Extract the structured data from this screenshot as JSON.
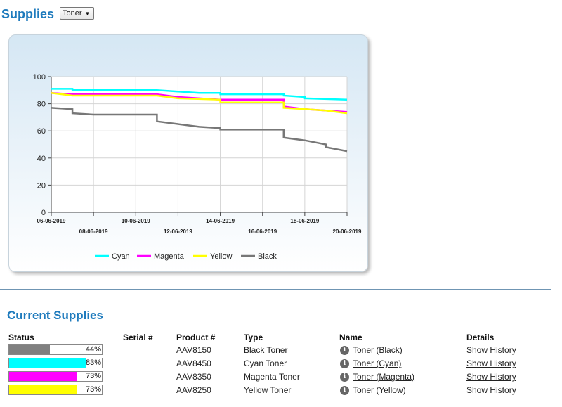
{
  "header": {
    "title": "Supplies",
    "select_value": "Toner"
  },
  "current": {
    "title": "Current Supplies",
    "columns": [
      "Status",
      "Serial #",
      "Product #",
      "Type",
      "Name",
      "Details"
    ],
    "rows": [
      {
        "pct": 44,
        "pct_label": "44%",
        "color": "#808080",
        "serial": "",
        "product": "AAV8150",
        "type": "Black Toner",
        "name": "Toner (Black)",
        "details": "Show History"
      },
      {
        "pct": 83,
        "pct_label": "83%",
        "color": "#00ffff",
        "serial": "",
        "product": "AAV8450",
        "type": "Cyan Toner",
        "name": "Toner (Cyan)",
        "details": "Show History"
      },
      {
        "pct": 73,
        "pct_label": "73%",
        "color": "#ff00ff",
        "serial": "",
        "product": "AAV8350",
        "type": "Magenta Toner",
        "name": "Toner (Magenta)",
        "details": "Show History"
      },
      {
        "pct": 73,
        "pct_label": "73%",
        "color": "#ffff00",
        "serial": "",
        "product": "AAV8250",
        "type": "Yellow Toner",
        "name": "Toner (Yellow)",
        "details": "Show History"
      }
    ]
  },
  "chart_data": {
    "type": "line",
    "x_type": "date",
    "x_range": [
      "06-06-2019",
      "20-06-2019"
    ],
    "x_ticks_top": [
      "06-06-2019",
      "10-06-2019",
      "14-06-2019",
      "18-06-2019"
    ],
    "x_ticks_bottom": [
      "08-06-2019",
      "12-06-2019",
      "16-06-2019",
      "20-06-2019"
    ],
    "ylim": [
      0,
      100
    ],
    "y_ticks": [
      0,
      20,
      40,
      60,
      80,
      100
    ],
    "grid": true,
    "legend_position": "bottom",
    "series": [
      {
        "name": "Cyan",
        "color": "#00ffff",
        "points": [
          [
            "06-06-2019",
            91
          ],
          [
            "07-06-2019",
            91
          ],
          [
            "07-06-2019",
            90
          ],
          [
            "11-06-2019",
            90
          ],
          [
            "12-06-2019",
            89
          ],
          [
            "13-06-2019",
            88
          ],
          [
            "14-06-2019",
            88
          ],
          [
            "14-06-2019",
            87
          ],
          [
            "17-06-2019",
            87
          ],
          [
            "17-06-2019",
            86
          ],
          [
            "18-06-2019",
            85
          ],
          [
            "18-06-2019",
            84
          ],
          [
            "20-06-2019",
            83
          ]
        ]
      },
      {
        "name": "Magenta",
        "color": "#ff00ff",
        "points": [
          [
            "06-06-2019",
            88
          ],
          [
            "07-06-2019",
            87
          ],
          [
            "11-06-2019",
            87
          ],
          [
            "12-06-2019",
            85
          ],
          [
            "13-06-2019",
            84
          ],
          [
            "14-06-2019",
            83
          ],
          [
            "17-06-2019",
            83
          ],
          [
            "17-06-2019",
            78
          ],
          [
            "18-06-2019",
            76
          ],
          [
            "19-06-2019",
            75
          ],
          [
            "20-06-2019",
            74
          ]
        ]
      },
      {
        "name": "Yellow",
        "color": "#ffff00",
        "points": [
          [
            "06-06-2019",
            88
          ],
          [
            "07-06-2019",
            86
          ],
          [
            "11-06-2019",
            86
          ],
          [
            "12-06-2019",
            84
          ],
          [
            "14-06-2019",
            83
          ],
          [
            "14-06-2019",
            81
          ],
          [
            "17-06-2019",
            81
          ],
          [
            "17-06-2019",
            77
          ],
          [
            "18-06-2019",
            76
          ],
          [
            "19-06-2019",
            75
          ],
          [
            "20-06-2019",
            73
          ]
        ]
      },
      {
        "name": "Black",
        "color": "#777777",
        "points": [
          [
            "06-06-2019",
            77
          ],
          [
            "07-06-2019",
            76
          ],
          [
            "07-06-2019",
            73
          ],
          [
            "08-06-2019",
            72
          ],
          [
            "11-06-2019",
            72
          ],
          [
            "11-06-2019",
            67
          ],
          [
            "12-06-2019",
            65
          ],
          [
            "13-06-2019",
            63
          ],
          [
            "14-06-2019",
            62
          ],
          [
            "14-06-2019",
            61
          ],
          [
            "17-06-2019",
            61
          ],
          [
            "17-06-2019",
            55
          ],
          [
            "18-06-2019",
            53
          ],
          [
            "19-06-2019",
            50
          ],
          [
            "19-06-2019",
            48
          ],
          [
            "20-06-2019",
            45
          ]
        ]
      }
    ]
  }
}
